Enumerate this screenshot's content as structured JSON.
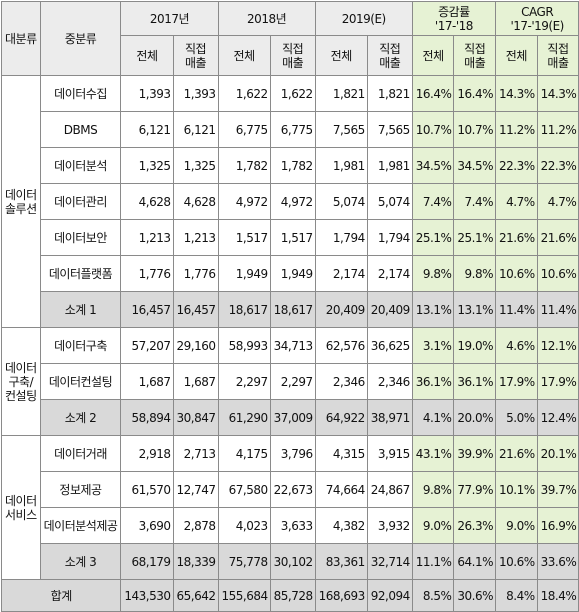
{
  "header": {
    "major": "대분류",
    "middle": "중분류",
    "years": [
      "2017년",
      "2018년",
      "2019(E)"
    ],
    "change_label": "증감률",
    "change_period": "'17-'18",
    "cagr_label": "CAGR",
    "cagr_period": "'17-'19(E)",
    "col_total": "전체",
    "col_direct_1": "직접",
    "col_direct_2": "매출"
  },
  "groups": [
    {
      "name_lines": [
        "데이터",
        "솔루션"
      ],
      "rows": [
        {
          "label": "데이터수집",
          "v": [
            "1,393",
            "1,393",
            "1,622",
            "1,622",
            "1,821",
            "1,821",
            "16.4%",
            "16.4%",
            "14.3%",
            "14.3%"
          ]
        },
        {
          "label": "DBMS",
          "v": [
            "6,121",
            "6,121",
            "6,775",
            "6,775",
            "7,565",
            "7,565",
            "10.7%",
            "10.7%",
            "11.2%",
            "11.2%"
          ]
        },
        {
          "label": "데이터분석",
          "v": [
            "1,325",
            "1,325",
            "1,782",
            "1,782",
            "1,981",
            "1,981",
            "34.5%",
            "34.5%",
            "22.3%",
            "22.3%"
          ]
        },
        {
          "label": "데이터관리",
          "v": [
            "4,628",
            "4,628",
            "4,972",
            "4,972",
            "5,074",
            "5,074",
            "7.4%",
            "7.4%",
            "4.7%",
            "4.7%"
          ]
        },
        {
          "label": "데이터보안",
          "v": [
            "1,213",
            "1,213",
            "1,517",
            "1,517",
            "1,794",
            "1,794",
            "25.1%",
            "25.1%",
            "21.6%",
            "21.6%"
          ]
        },
        {
          "label": "데이터플랫폼",
          "v": [
            "1,776",
            "1,776",
            "1,949",
            "1,949",
            "2,174",
            "2,174",
            "9.8%",
            "9.8%",
            "10.6%",
            "10.6%"
          ]
        }
      ],
      "subtotal": {
        "label": "소계 1",
        "v": [
          "16,457",
          "16,457",
          "18,617",
          "18,617",
          "20,409",
          "20,409",
          "13.1%",
          "13.1%",
          "11.4%",
          "11.4%"
        ]
      }
    },
    {
      "name_lines": [
        "데이터",
        "구축/",
        "컨설팅"
      ],
      "rows": [
        {
          "label": "데이터구축",
          "v": [
            "57,207",
            "29,160",
            "58,993",
            "34,713",
            "62,576",
            "36,625",
            "3.1%",
            "19.0%",
            "4.6%",
            "12.1%"
          ]
        },
        {
          "label": "데이터컨설팅",
          "v": [
            "1,687",
            "1,687",
            "2,297",
            "2,297",
            "2,346",
            "2,346",
            "36.1%",
            "36.1%",
            "17.9%",
            "17.9%"
          ]
        }
      ],
      "subtotal": {
        "label": "소계 2",
        "v": [
          "58,894",
          "30,847",
          "61,290",
          "37,009",
          "64,922",
          "38,971",
          "4.1%",
          "20.0%",
          "5.0%",
          "12.4%"
        ]
      }
    },
    {
      "name_lines": [
        "데이터",
        "서비스"
      ],
      "rows": [
        {
          "label": "데이터거래",
          "v": [
            "2,918",
            "2,713",
            "4,175",
            "3,796",
            "4,315",
            "3,915",
            "43.1%",
            "39.9%",
            "21.6%",
            "20.1%"
          ]
        },
        {
          "label": "정보제공",
          "v": [
            "61,570",
            "12,747",
            "67,580",
            "22,673",
            "74,664",
            "24,867",
            "9.8%",
            "77.9%",
            "10.1%",
            "39.7%"
          ]
        },
        {
          "label": "데이터분석제공",
          "v": [
            "3,690",
            "2,878",
            "4,023",
            "3,633",
            "4,382",
            "3,932",
            "9.0%",
            "26.3%",
            "9.0%",
            "16.9%"
          ]
        }
      ],
      "subtotal": {
        "label": "소계 3",
        "v": [
          "68,179",
          "18,339",
          "75,778",
          "30,102",
          "83,361",
          "32,714",
          "11.1%",
          "64.1%",
          "10.6%",
          "33.6%"
        ]
      }
    }
  ],
  "total": {
    "label": "합계",
    "v": [
      "143,530",
      "65,642",
      "155,684",
      "85,728",
      "168,693",
      "92,094",
      "8.5%",
      "30.6%",
      "8.4%",
      "18.4%"
    ]
  }
}
